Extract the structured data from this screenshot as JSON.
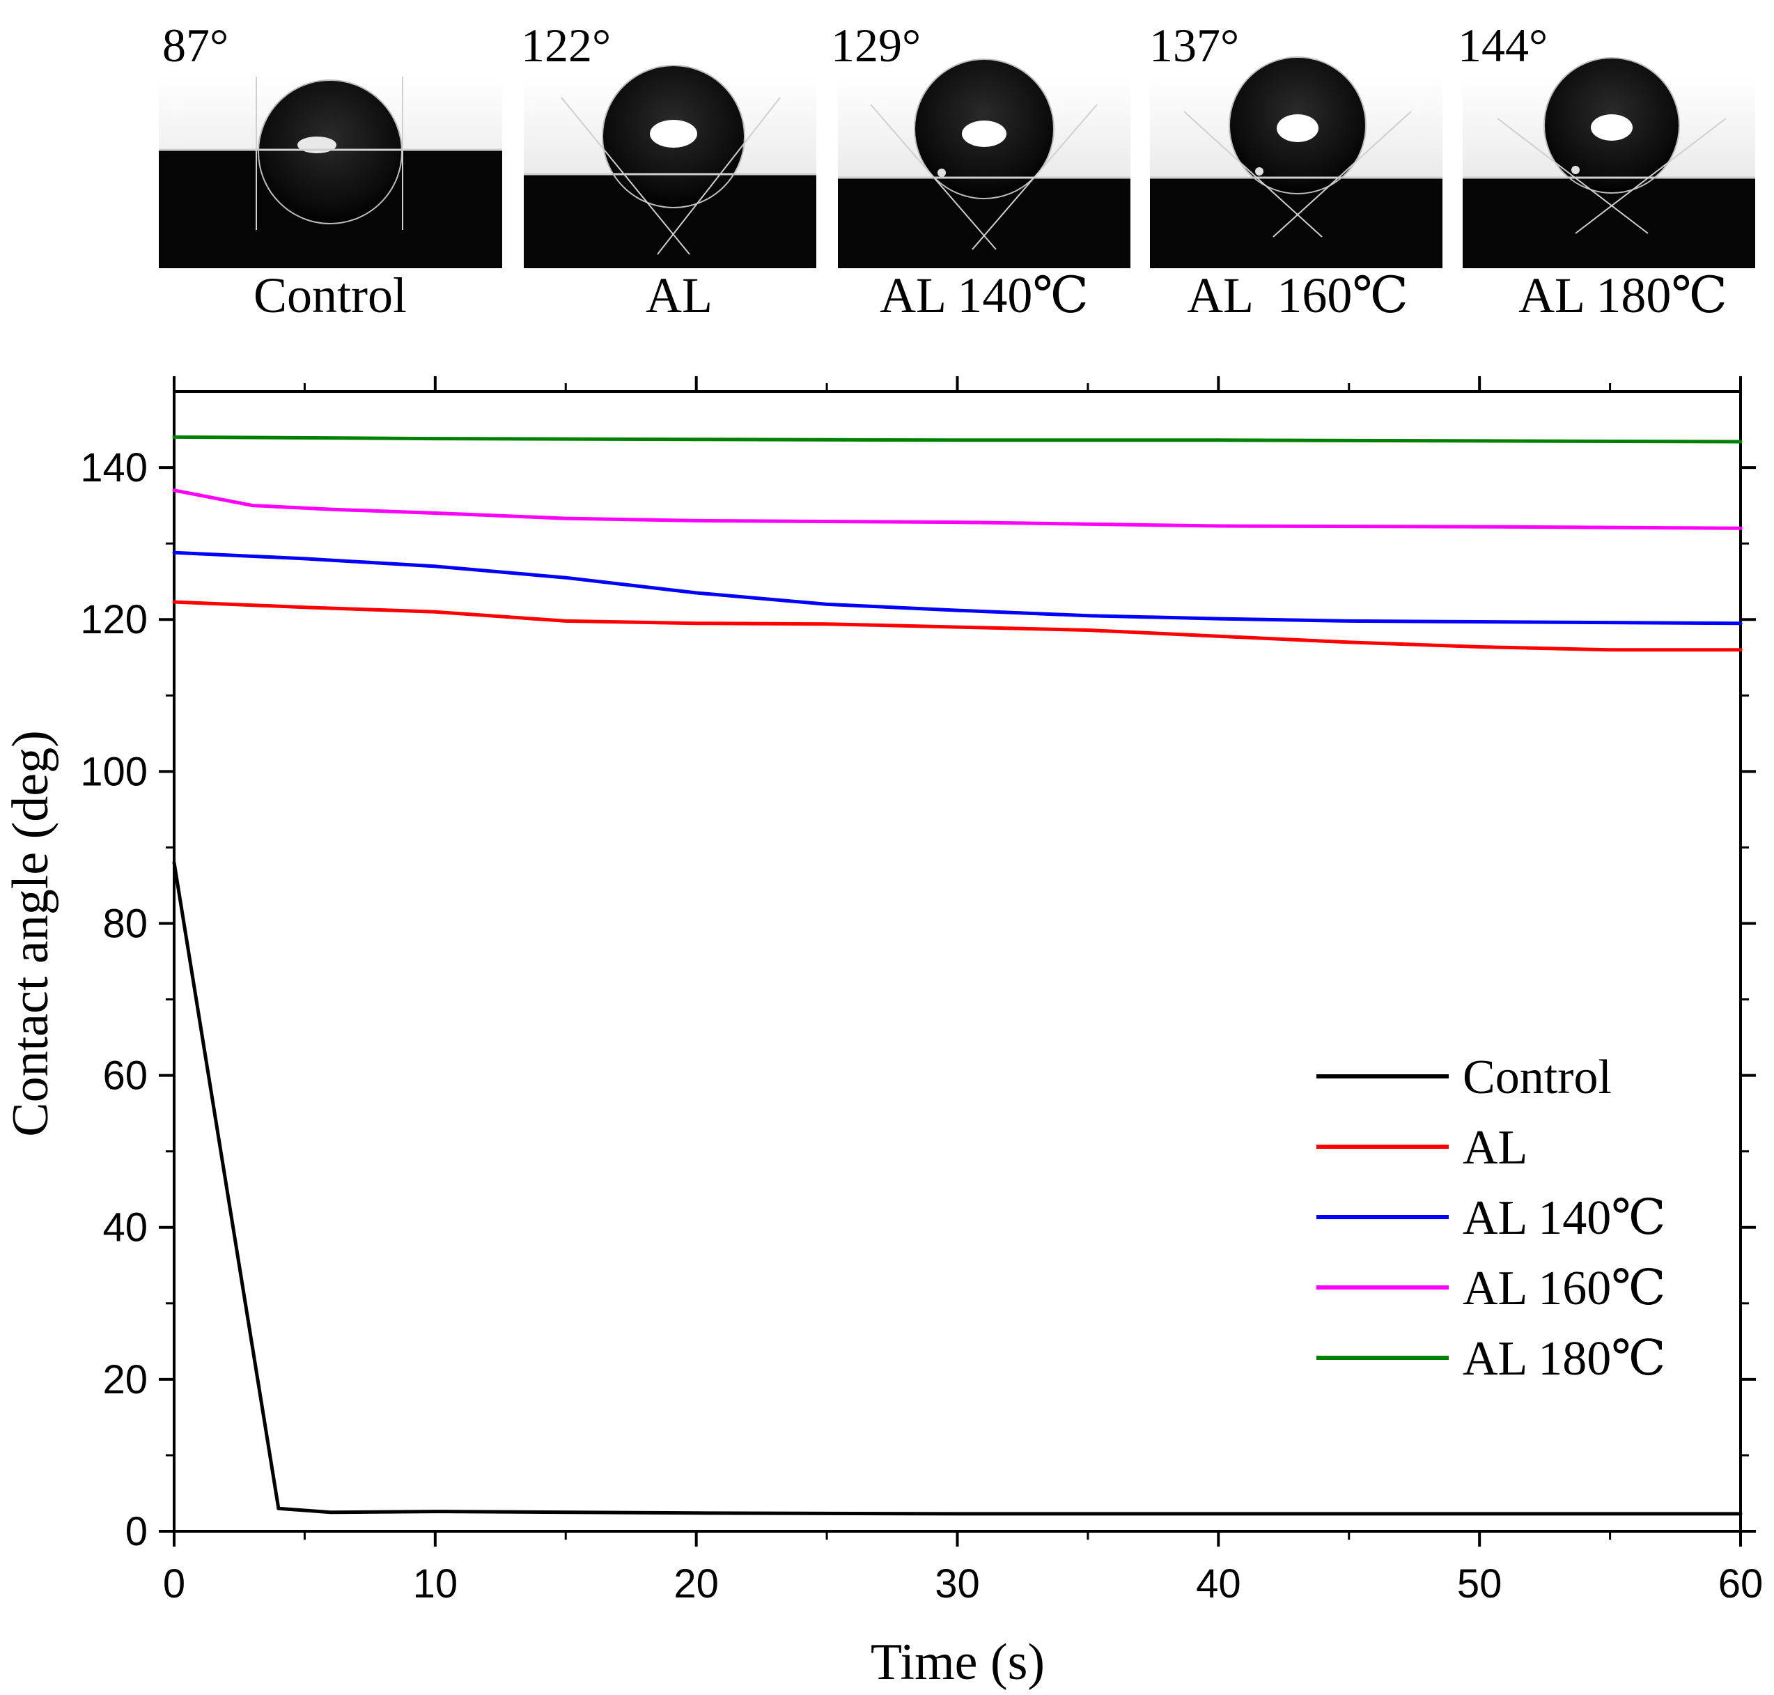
{
  "droplet_panels": [
    {
      "angle": "87°",
      "label": "Control",
      "droplet_icon": "sessile-droplet-image"
    },
    {
      "angle": "122°",
      "label": "AL",
      "droplet_icon": "sessile-droplet-image"
    },
    {
      "angle": "129°",
      "label": "AL 140℃",
      "droplet_icon": "sessile-droplet-image"
    },
    {
      "angle": "137°",
      "label": "AL  160℃",
      "droplet_icon": "sessile-droplet-image"
    },
    {
      "angle": "144°",
      "label": "AL 180℃",
      "droplet_icon": "sessile-droplet-image"
    }
  ],
  "chart_data": {
    "type": "line",
    "title": "",
    "xlabel": "Time (s)",
    "ylabel": "Contact angle (deg)",
    "xlim": [
      0,
      60
    ],
    "ylim": [
      0,
      150
    ],
    "x_ticks": [
      "0",
      "10",
      "20",
      "30",
      "40",
      "50",
      "60"
    ],
    "y_ticks": [
      "0",
      "20",
      "40",
      "60",
      "80",
      "100",
      "120",
      "140"
    ],
    "grid": false,
    "legend_position": "bottom-right",
    "series": [
      {
        "name": "Control",
        "color": "#000000",
        "x": [
          0,
          4,
          6,
          10,
          20,
          30,
          40,
          50,
          60
        ],
        "y": [
          88,
          3,
          2.5,
          2.6,
          2.4,
          2.3,
          2.3,
          2.3,
          2.3
        ]
      },
      {
        "name": "AL",
        "color": "#ff0000",
        "x": [
          0,
          5,
          10,
          15,
          20,
          25,
          30,
          35,
          40,
          45,
          50,
          55,
          60
        ],
        "y": [
          122.3,
          121.6,
          121,
          119.8,
          119.5,
          119.4,
          119,
          118.6,
          117.8,
          117,
          116.4,
          116,
          116
        ]
      },
      {
        "name": "AL 140℃",
        "color": "#0000ff",
        "x": [
          0,
          5,
          10,
          15,
          20,
          25,
          30,
          35,
          40,
          45,
          50,
          55,
          60
        ],
        "y": [
          128.8,
          128,
          127,
          125.5,
          123.5,
          122,
          121.2,
          120.5,
          120.1,
          119.8,
          119.7,
          119.6,
          119.5
        ]
      },
      {
        "name": "AL 160℃",
        "color": "#ff00ff",
        "x": [
          0,
          3,
          6,
          10,
          15,
          20,
          30,
          40,
          50,
          60
        ],
        "y": [
          137,
          135,
          134.5,
          134,
          133.3,
          133,
          132.8,
          132.3,
          132.2,
          132
        ]
      },
      {
        "name": "AL 180℃",
        "color": "#008000",
        "x": [
          0,
          10,
          20,
          30,
          40,
          50,
          60
        ],
        "y": [
          144,
          143.8,
          143.7,
          143.6,
          143.6,
          143.5,
          143.4
        ]
      }
    ]
  }
}
